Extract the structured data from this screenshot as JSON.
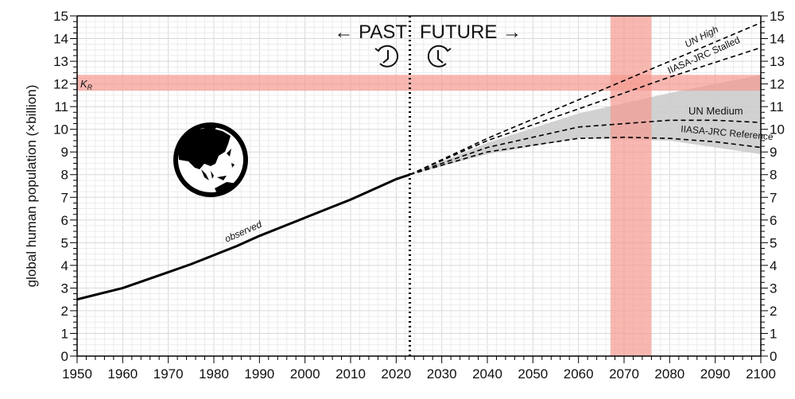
{
  "chart_data": {
    "type": "line",
    "title": "",
    "xlabel": "",
    "ylabel": "global human population (×billion)",
    "xlim": [
      1950,
      2100
    ],
    "ylim": [
      0,
      15
    ],
    "grid": true,
    "x_ticks": [
      "1950",
      "1960",
      "1970",
      "1980",
      "1990",
      "2000",
      "2010",
      "2020",
      "2030",
      "2040",
      "2050",
      "2060",
      "2070",
      "2080",
      "2090",
      "2100"
    ],
    "y_ticks": [
      "0",
      "1",
      "2",
      "3",
      "4",
      "5",
      "6",
      "7",
      "8",
      "9",
      "10",
      "11",
      "12",
      "13",
      "14",
      "15"
    ],
    "divider_year": 2023,
    "annotations": {
      "past": "← PAST",
      "future": "FUTURE →",
      "kr_label": "K",
      "kr_sub": "R"
    },
    "kr_band": {
      "y_range": [
        11.7,
        12.4
      ],
      "color": "#f59a90"
    },
    "year_band": {
      "x_range": [
        2067,
        2076
      ],
      "color": "#f59a90"
    },
    "uncertainty_band": {
      "color": "#cccccc",
      "x": [
        2023,
        2040,
        2060,
        2080,
        2100
      ],
      "upper": [
        8.0,
        9.4,
        10.7,
        11.6,
        12.4
      ],
      "lower": [
        8.0,
        8.9,
        9.6,
        9.5,
        8.9
      ]
    },
    "series": [
      {
        "name": "observed",
        "style": "solid",
        "x": [
          1950,
          1955,
          1960,
          1965,
          1970,
          1975,
          1980,
          1985,
          1990,
          1995,
          2000,
          2005,
          2010,
          2015,
          2020,
          2023
        ],
        "y": [
          2.5,
          2.75,
          3.0,
          3.35,
          3.7,
          4.05,
          4.45,
          4.85,
          5.3,
          5.7,
          6.1,
          6.5,
          6.9,
          7.35,
          7.8,
          8.0
        ]
      },
      {
        "name": "UN High",
        "style": "dashed",
        "x": [
          2023,
          2040,
          2060,
          2080,
          2100
        ],
        "y": [
          8.0,
          9.6,
          11.3,
          13.0,
          14.7
        ]
      },
      {
        "name": "IIASA-JRC Stalled",
        "style": "dashed",
        "x": [
          2023,
          2040,
          2060,
          2080,
          2100
        ],
        "y": [
          8.0,
          9.5,
          10.9,
          12.3,
          13.6
        ]
      },
      {
        "name": "UN Medium",
        "style": "dashed",
        "x": [
          2023,
          2040,
          2060,
          2080,
          2090,
          2100
        ],
        "y": [
          8.0,
          9.2,
          10.1,
          10.4,
          10.4,
          10.3
        ]
      },
      {
        "name": "IIASA-JRC Reference",
        "style": "dashed",
        "x": [
          2023,
          2040,
          2060,
          2070,
          2080,
          2090,
          2100
        ],
        "y": [
          8.0,
          9.0,
          9.6,
          9.65,
          9.6,
          9.45,
          9.2
        ]
      }
    ]
  }
}
